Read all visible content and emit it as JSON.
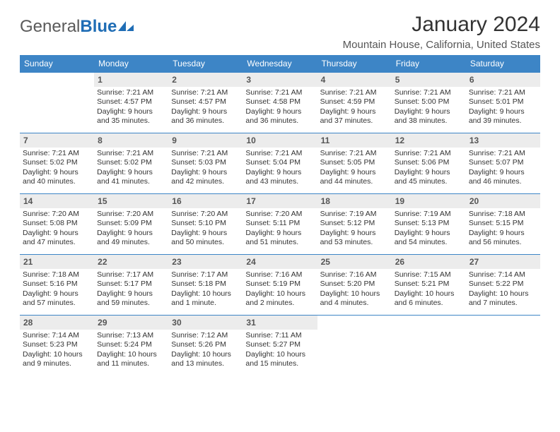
{
  "logo": {
    "text1": "General",
    "text2": "Blue"
  },
  "monthTitle": "January 2024",
  "location": "Mountain House, California, United States",
  "colors": {
    "headerBlue": "#3d85c6",
    "dayBg": "#ececec",
    "borderBlue": "#3d85c6"
  },
  "dayHeaders": [
    "Sunday",
    "Monday",
    "Tuesday",
    "Wednesday",
    "Thursday",
    "Friday",
    "Saturday"
  ],
  "weeks": [
    [
      {
        "date": "",
        "sunrise": "",
        "sunset": "",
        "daylight1": "",
        "daylight2": ""
      },
      {
        "date": "1",
        "sunrise": "Sunrise: 7:21 AM",
        "sunset": "Sunset: 4:57 PM",
        "daylight1": "Daylight: 9 hours",
        "daylight2": "and 35 minutes."
      },
      {
        "date": "2",
        "sunrise": "Sunrise: 7:21 AM",
        "sunset": "Sunset: 4:57 PM",
        "daylight1": "Daylight: 9 hours",
        "daylight2": "and 36 minutes."
      },
      {
        "date": "3",
        "sunrise": "Sunrise: 7:21 AM",
        "sunset": "Sunset: 4:58 PM",
        "daylight1": "Daylight: 9 hours",
        "daylight2": "and 36 minutes."
      },
      {
        "date": "4",
        "sunrise": "Sunrise: 7:21 AM",
        "sunset": "Sunset: 4:59 PM",
        "daylight1": "Daylight: 9 hours",
        "daylight2": "and 37 minutes."
      },
      {
        "date": "5",
        "sunrise": "Sunrise: 7:21 AM",
        "sunset": "Sunset: 5:00 PM",
        "daylight1": "Daylight: 9 hours",
        "daylight2": "and 38 minutes."
      },
      {
        "date": "6",
        "sunrise": "Sunrise: 7:21 AM",
        "sunset": "Sunset: 5:01 PM",
        "daylight1": "Daylight: 9 hours",
        "daylight2": "and 39 minutes."
      }
    ],
    [
      {
        "date": "7",
        "sunrise": "Sunrise: 7:21 AM",
        "sunset": "Sunset: 5:02 PM",
        "daylight1": "Daylight: 9 hours",
        "daylight2": "and 40 minutes."
      },
      {
        "date": "8",
        "sunrise": "Sunrise: 7:21 AM",
        "sunset": "Sunset: 5:02 PM",
        "daylight1": "Daylight: 9 hours",
        "daylight2": "and 41 minutes."
      },
      {
        "date": "9",
        "sunrise": "Sunrise: 7:21 AM",
        "sunset": "Sunset: 5:03 PM",
        "daylight1": "Daylight: 9 hours",
        "daylight2": "and 42 minutes."
      },
      {
        "date": "10",
        "sunrise": "Sunrise: 7:21 AM",
        "sunset": "Sunset: 5:04 PM",
        "daylight1": "Daylight: 9 hours",
        "daylight2": "and 43 minutes."
      },
      {
        "date": "11",
        "sunrise": "Sunrise: 7:21 AM",
        "sunset": "Sunset: 5:05 PM",
        "daylight1": "Daylight: 9 hours",
        "daylight2": "and 44 minutes."
      },
      {
        "date": "12",
        "sunrise": "Sunrise: 7:21 AM",
        "sunset": "Sunset: 5:06 PM",
        "daylight1": "Daylight: 9 hours",
        "daylight2": "and 45 minutes."
      },
      {
        "date": "13",
        "sunrise": "Sunrise: 7:21 AM",
        "sunset": "Sunset: 5:07 PM",
        "daylight1": "Daylight: 9 hours",
        "daylight2": "and 46 minutes."
      }
    ],
    [
      {
        "date": "14",
        "sunrise": "Sunrise: 7:20 AM",
        "sunset": "Sunset: 5:08 PM",
        "daylight1": "Daylight: 9 hours",
        "daylight2": "and 47 minutes."
      },
      {
        "date": "15",
        "sunrise": "Sunrise: 7:20 AM",
        "sunset": "Sunset: 5:09 PM",
        "daylight1": "Daylight: 9 hours",
        "daylight2": "and 49 minutes."
      },
      {
        "date": "16",
        "sunrise": "Sunrise: 7:20 AM",
        "sunset": "Sunset: 5:10 PM",
        "daylight1": "Daylight: 9 hours",
        "daylight2": "and 50 minutes."
      },
      {
        "date": "17",
        "sunrise": "Sunrise: 7:20 AM",
        "sunset": "Sunset: 5:11 PM",
        "daylight1": "Daylight: 9 hours",
        "daylight2": "and 51 minutes."
      },
      {
        "date": "18",
        "sunrise": "Sunrise: 7:19 AM",
        "sunset": "Sunset: 5:12 PM",
        "daylight1": "Daylight: 9 hours",
        "daylight2": "and 53 minutes."
      },
      {
        "date": "19",
        "sunrise": "Sunrise: 7:19 AM",
        "sunset": "Sunset: 5:13 PM",
        "daylight1": "Daylight: 9 hours",
        "daylight2": "and 54 minutes."
      },
      {
        "date": "20",
        "sunrise": "Sunrise: 7:18 AM",
        "sunset": "Sunset: 5:15 PM",
        "daylight1": "Daylight: 9 hours",
        "daylight2": "and 56 minutes."
      }
    ],
    [
      {
        "date": "21",
        "sunrise": "Sunrise: 7:18 AM",
        "sunset": "Sunset: 5:16 PM",
        "daylight1": "Daylight: 9 hours",
        "daylight2": "and 57 minutes."
      },
      {
        "date": "22",
        "sunrise": "Sunrise: 7:17 AM",
        "sunset": "Sunset: 5:17 PM",
        "daylight1": "Daylight: 9 hours",
        "daylight2": "and 59 minutes."
      },
      {
        "date": "23",
        "sunrise": "Sunrise: 7:17 AM",
        "sunset": "Sunset: 5:18 PM",
        "daylight1": "Daylight: 10 hours",
        "daylight2": "and 1 minute."
      },
      {
        "date": "24",
        "sunrise": "Sunrise: 7:16 AM",
        "sunset": "Sunset: 5:19 PM",
        "daylight1": "Daylight: 10 hours",
        "daylight2": "and 2 minutes."
      },
      {
        "date": "25",
        "sunrise": "Sunrise: 7:16 AM",
        "sunset": "Sunset: 5:20 PM",
        "daylight1": "Daylight: 10 hours",
        "daylight2": "and 4 minutes."
      },
      {
        "date": "26",
        "sunrise": "Sunrise: 7:15 AM",
        "sunset": "Sunset: 5:21 PM",
        "daylight1": "Daylight: 10 hours",
        "daylight2": "and 6 minutes."
      },
      {
        "date": "27",
        "sunrise": "Sunrise: 7:14 AM",
        "sunset": "Sunset: 5:22 PM",
        "daylight1": "Daylight: 10 hours",
        "daylight2": "and 7 minutes."
      }
    ],
    [
      {
        "date": "28",
        "sunrise": "Sunrise: 7:14 AM",
        "sunset": "Sunset: 5:23 PM",
        "daylight1": "Daylight: 10 hours",
        "daylight2": "and 9 minutes."
      },
      {
        "date": "29",
        "sunrise": "Sunrise: 7:13 AM",
        "sunset": "Sunset: 5:24 PM",
        "daylight1": "Daylight: 10 hours",
        "daylight2": "and 11 minutes."
      },
      {
        "date": "30",
        "sunrise": "Sunrise: 7:12 AM",
        "sunset": "Sunset: 5:26 PM",
        "daylight1": "Daylight: 10 hours",
        "daylight2": "and 13 minutes."
      },
      {
        "date": "31",
        "sunrise": "Sunrise: 7:11 AM",
        "sunset": "Sunset: 5:27 PM",
        "daylight1": "Daylight: 10 hours",
        "daylight2": "and 15 minutes."
      },
      {
        "date": "",
        "sunrise": "",
        "sunset": "",
        "daylight1": "",
        "daylight2": ""
      },
      {
        "date": "",
        "sunrise": "",
        "sunset": "",
        "daylight1": "",
        "daylight2": ""
      },
      {
        "date": "",
        "sunrise": "",
        "sunset": "",
        "daylight1": "",
        "daylight2": ""
      }
    ]
  ]
}
